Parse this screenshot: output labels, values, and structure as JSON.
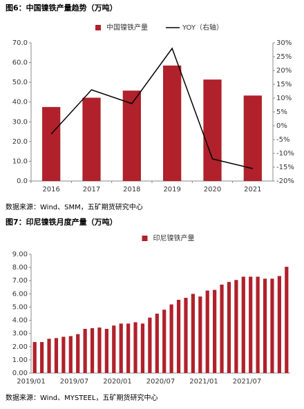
{
  "chart_data": [
    {
      "type": "bar",
      "title": "图6：中国镍铁产量趋势（万吨）",
      "source": "数据来源：Wind、SMM，五矿期货研究中心",
      "categories": [
        "2016",
        "2017",
        "2018",
        "2019",
        "2020",
        "2021"
      ],
      "series": [
        {
          "name": "中国镍铁产量",
          "color": "#b0212b",
          "values": [
            37.5,
            42.2,
            45.8,
            58.5,
            51.4,
            43.3
          ]
        },
        {
          "name": "YOY（右轴）",
          "color": "#000000",
          "type": "line",
          "axis": "y2",
          "values": [
            -3,
            13,
            8,
            28,
            -12,
            -15.5
          ]
        }
      ],
      "ylim": [
        0,
        70
      ],
      "yticks": [
        {
          "value": 0,
          "label": "0.0"
        },
        {
          "value": 10,
          "label": "10.0"
        },
        {
          "value": 20,
          "label": "20.0"
        },
        {
          "value": 30,
          "label": "30.0"
        },
        {
          "value": 40,
          "label": "40.0"
        },
        {
          "value": 50,
          "label": "50.0"
        },
        {
          "value": 60,
          "label": "60.0"
        },
        {
          "value": 70,
          "label": "70.0"
        }
      ],
      "y2lim": [
        -20,
        30
      ],
      "y2ticks": [
        {
          "value": -20,
          "label": "-20%"
        },
        {
          "value": -15,
          "label": "-15%"
        },
        {
          "value": -10,
          "label": "-10%"
        },
        {
          "value": -5,
          "label": "-5%"
        },
        {
          "value": 0,
          "label": "0%"
        },
        {
          "value": 5,
          "label": "5%"
        },
        {
          "value": 10,
          "label": "10%"
        },
        {
          "value": 15,
          "label": "15%"
        },
        {
          "value": 20,
          "label": "20%"
        },
        {
          "value": 25,
          "label": "25%"
        },
        {
          "value": 30,
          "label": "30%"
        }
      ],
      "legend": "top"
    },
    {
      "type": "bar",
      "title": "图7：印尼镍铁月度产量（万吨）",
      "source": "数据来源：Wind、MYSTEEL，五矿期货研究中心",
      "categories": [
        "2019/01",
        null,
        null,
        null,
        null,
        null,
        "2019/07",
        null,
        null,
        null,
        null,
        null,
        "2020/01",
        null,
        null,
        null,
        null,
        null,
        "2020/07",
        null,
        null,
        null,
        null,
        null,
        "2021/01",
        null,
        null,
        null,
        null,
        null,
        "2021/07",
        null,
        null,
        null,
        null,
        null
      ],
      "series": [
        {
          "name": "印尼镍铁产量",
          "color": "#b0212b",
          "values": [
            2.35,
            2.35,
            2.6,
            2.65,
            2.75,
            2.8,
            2.95,
            3.35,
            3.4,
            3.45,
            3.35,
            3.6,
            3.75,
            3.75,
            3.85,
            3.75,
            4.2,
            4.5,
            4.8,
            5.2,
            5.55,
            5.7,
            6.0,
            5.8,
            6.25,
            6.3,
            6.7,
            6.9,
            7.05,
            7.3,
            7.3,
            7.3,
            7.15,
            7.15,
            7.35,
            8.05
          ]
        }
      ],
      "ylim": [
        0,
        9
      ],
      "yticks": [
        {
          "value": 0,
          "label": "0.00"
        },
        {
          "value": 1,
          "label": "1.00"
        },
        {
          "value": 2,
          "label": "2.00"
        },
        {
          "value": 3,
          "label": "3.00"
        },
        {
          "value": 4,
          "label": "4.00"
        },
        {
          "value": 5,
          "label": "5.00"
        },
        {
          "value": 6,
          "label": "6.00"
        },
        {
          "value": 7,
          "label": "7.00"
        },
        {
          "value": 8,
          "label": "8.00"
        },
        {
          "value": 9,
          "label": "9.00"
        }
      ],
      "legend": "top"
    }
  ]
}
